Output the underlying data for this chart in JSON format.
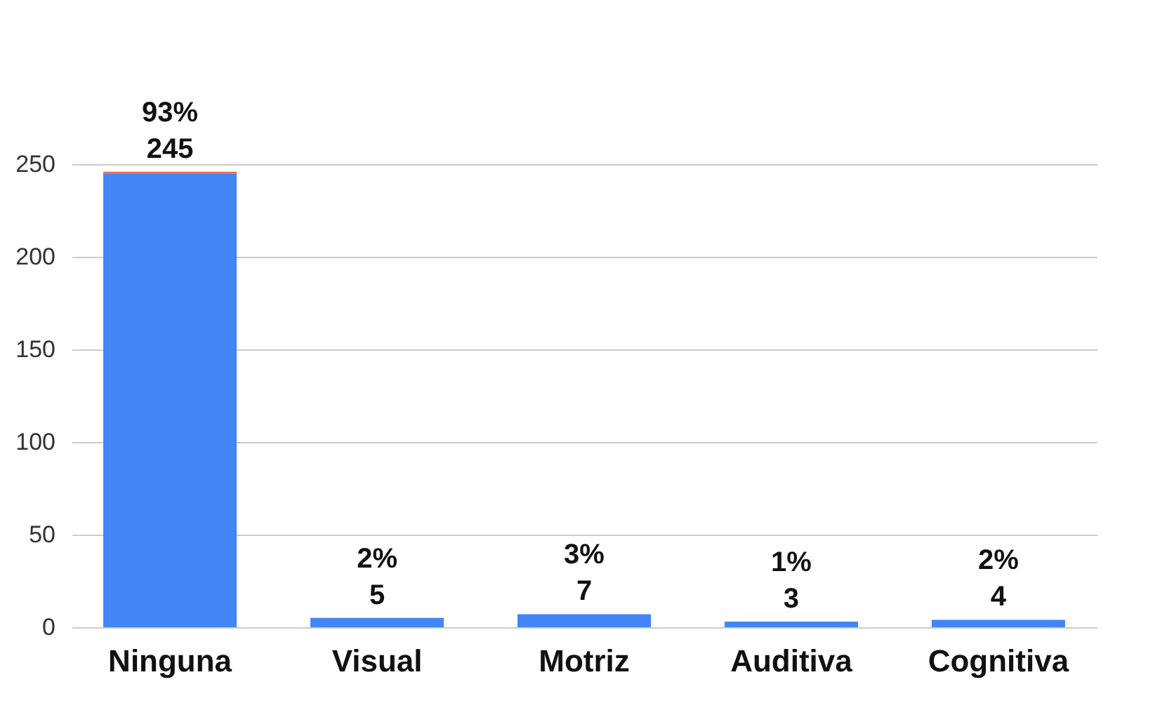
{
  "chart_data": {
    "type": "bar",
    "stacked": true,
    "categories": [
      "Ninguna",
      "Visual",
      "Motriz",
      "Auditiva",
      "Cognitiva"
    ],
    "series": [
      {
        "color": "#4285f4",
        "values": [
          245,
          5,
          7,
          3,
          4
        ],
        "value_labels": [
          "245",
          "5",
          "7",
          "3",
          "4"
        ]
      },
      {
        "color": "#ea6b5e",
        "values": [
          0.93,
          0.02,
          0.03,
          0.01,
          0.02
        ],
        "value_labels": [
          "93%",
          "2%",
          "3%",
          "1%",
          "2%"
        ]
      }
    ],
    "ylim": [
      0,
      250
    ],
    "yticks": [
      0,
      50,
      100,
      150,
      200,
      250
    ],
    "grid": "y",
    "legend": false
  }
}
